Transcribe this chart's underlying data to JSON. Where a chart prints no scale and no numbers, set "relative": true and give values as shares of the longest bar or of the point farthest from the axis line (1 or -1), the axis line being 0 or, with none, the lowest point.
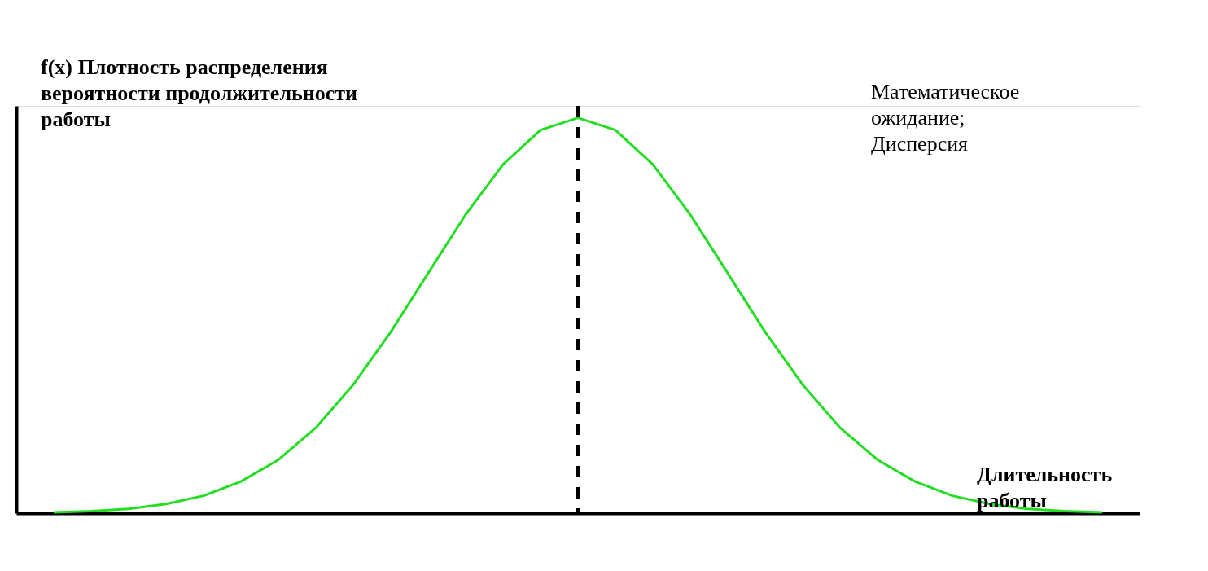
{
  "chart_data": {
    "type": "line",
    "relative": true,
    "ylabel": "f(x) Плотность распределения вероятности продолжительности работы",
    "xlabel": "Длительность работы",
    "annotations": [
      "Математическое ожидание; Дисперсия"
    ],
    "categories": [
      null,
      null,
      null,
      null,
      null,
      null,
      null,
      null,
      null,
      null,
      null,
      null,
      null,
      null,
      null,
      null,
      null,
      null,
      null,
      null,
      null,
      null,
      null,
      null,
      null,
      null,
      null,
      null,
      null
    ],
    "series": [
      {
        "color": "#22dd22",
        "values": [
          0.002,
          0.005,
          0.011,
          0.023,
          0.044,
          0.08,
          0.135,
          0.216,
          0.325,
          0.458,
          0.607,
          0.755,
          0.882,
          0.969,
          1,
          0.969,
          0.882,
          0.755,
          0.607,
          0.458,
          0.325,
          0.216,
          0.135,
          0.08,
          0.044,
          0.023,
          0.011,
          0.005,
          0.002
        ]
      }
    ],
    "line_style": "solid",
    "ref_lines": [
      {
        "axis": "x",
        "color": "#000000",
        "line_style": "dashed"
      }
    ]
  }
}
